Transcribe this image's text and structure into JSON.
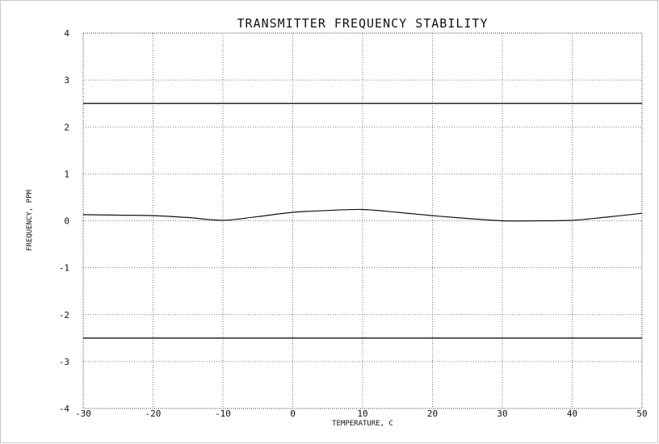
{
  "chart_data": {
    "type": "line",
    "title": "TRANSMITTER FREQUENCY STABILITY",
    "xlabel": "TEMPERATURE, C",
    "ylabel": "FREQUENCY, PPM",
    "xlim": [
      -30,
      50
    ],
    "ylim": [
      -4,
      4
    ],
    "x_ticks": [
      -30,
      -20,
      -10,
      0,
      10,
      20,
      30,
      40,
      50
    ],
    "y_ticks": [
      4,
      3,
      2,
      1,
      0,
      -1,
      -2,
      -3,
      -4
    ],
    "grid": true,
    "series": [
      {
        "x": [
          -30,
          -25,
          -20,
          -15,
          -10,
          -5,
          0,
          5,
          10,
          15,
          20,
          25,
          30,
          35,
          40,
          45,
          50
        ],
        "y": [
          0.13,
          0.12,
          0.11,
          0.07,
          0.01,
          0.09,
          0.18,
          0.22,
          0.24,
          0.18,
          0.11,
          0.05,
          0.0,
          0.0,
          0.01,
          0.08,
          0.16
        ]
      },
      {
        "x": [
          -30,
          50
        ],
        "y": [
          2.5,
          2.5
        ]
      },
      {
        "x": [
          -30,
          50
        ],
        "y": [
          -2.5,
          -2.5
        ]
      }
    ]
  }
}
